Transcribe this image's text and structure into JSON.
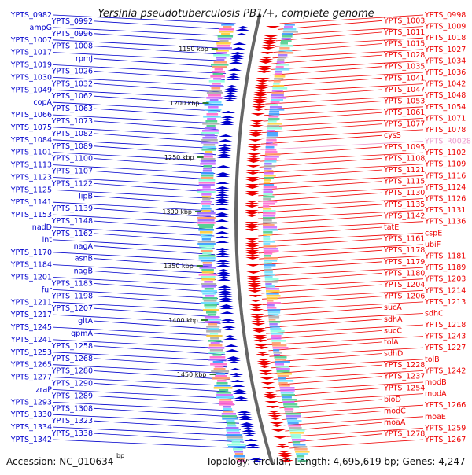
{
  "title": "Yersinia pseudotuberculosis PB1/+, complete genome",
  "footer": {
    "accession": "Accession: NC_010634",
    "topology": "Topology: circular; Length: 4,695,619 bp; Genes: 4,247",
    "bp_unit": "bp"
  },
  "colors": {
    "forward": "#0000cc",
    "reverse": "#ee0000",
    "rna": "#ee99cc",
    "backbone": "#666666",
    "tick": "#2e7d32"
  },
  "kbp_ticks": [
    "1150 kbp",
    "1200 kbp",
    "1250 kbp",
    "1300 kbp",
    "1350 kbp",
    "1400 kbp",
    "1450 kbp"
  ],
  "left_labels": [
    "YPTS_0982",
    "YPTS_0992",
    "ampG",
    "YPTS_0996",
    "YPTS_1007",
    "YPTS_1008",
    "YPTS_1017",
    "rpmJ",
    "YPTS_1019",
    "YPTS_1026",
    "YPTS_1030",
    "YPTS_1032",
    "YPTS_1049",
    "YPTS_1062",
    "copA",
    "YPTS_1063",
    "YPTS_1066",
    "YPTS_1073",
    "YPTS_1075",
    "YPTS_1082",
    "YPTS_1084",
    "YPTS_1089",
    "YPTS_1101",
    "YPTS_1100",
    "YPTS_1113",
    "YPTS_1107",
    "YPTS_1123",
    "YPTS_1122",
    "YPTS_1125",
    "lipB",
    "YPTS_1141",
    "YPTS_1139",
    "YPTS_1153",
    "YPTS_1148",
    "nadD",
    "YPTS_1162",
    "lnt",
    "nagA",
    "YPTS_1170",
    "asnB",
    "YPTS_1184",
    "nagB",
    "YPTS_1201",
    "YPTS_1183",
    "fur",
    "YPTS_1198",
    "YPTS_1211",
    "YPTS_1207",
    "YPTS_1217",
    "gltA",
    "YPTS_1245",
    "gpmA",
    "YPTS_1241",
    "YPTS_1258",
    "YPTS_1253",
    "YPTS_1268",
    "YPTS_1265",
    "YPTS_1280",
    "YPTS_1277",
    "YPTS_1290",
    "zraP",
    "YPTS_1289",
    "YPTS_1293",
    "YPTS_1308",
    "YPTS_1330",
    "YPTS_1323",
    "YPTS_1334",
    "YPTS_1338",
    "YPTS_1342"
  ],
  "right_labels": [
    "YPTS_0998",
    "YPTS_1003",
    "YPTS_1009",
    "YPTS_1011",
    "YPTS_1018",
    "YPTS_1015",
    "YPTS_1027",
    "YPTS_1028",
    "YPTS_1034",
    "YPTS_1035",
    "YPTS_1036",
    "YPTS_1041",
    "YPTS_1042",
    "YPTS_1047",
    "YPTS_1048",
    "YPTS_1053",
    "YPTS_1054",
    "YPTS_1061",
    "YPTS_1071",
    "YPTS_1077",
    "YPTS_1078",
    "cysS",
    "YPTS_R0028",
    "YPTS_1095",
    "YPTS_1102",
    "YPTS_1108",
    "YPTS_1109",
    "YPTS_1121",
    "YPTS_1116",
    "YPTS_1115",
    "YPTS_1124",
    "YPTS_1130",
    "YPTS_1126",
    "YPTS_1135",
    "YPTS_1131",
    "YPTS_1142",
    "YPTS_1136",
    "tatE",
    "cspE",
    "YPTS_1161",
    "ubiF",
    "YPTS_1178",
    "YPTS_1181",
    "YPTS_1179",
    "YPTS_1189",
    "YPTS_1180",
    "YPTS_1203",
    "YPTS_1204",
    "YPTS_1214",
    "YPTS_1206",
    "YPTS_1213",
    "sucA",
    "sdhC",
    "sdhA",
    "YPTS_1218",
    "sucC",
    "YPTS_1243",
    "tolA",
    "YPTS_1227",
    "sdhD",
    "tolB",
    "YPTS_1228",
    "YPTS_1242",
    "YPTS_1237",
    "modB",
    "YPTS_1254",
    "modA",
    "bioD",
    "YPTS_1266",
    "modC",
    "moaE",
    "moaA",
    "YPTS_1259",
    "YPTS_1278",
    "YPTS_1267"
  ]
}
